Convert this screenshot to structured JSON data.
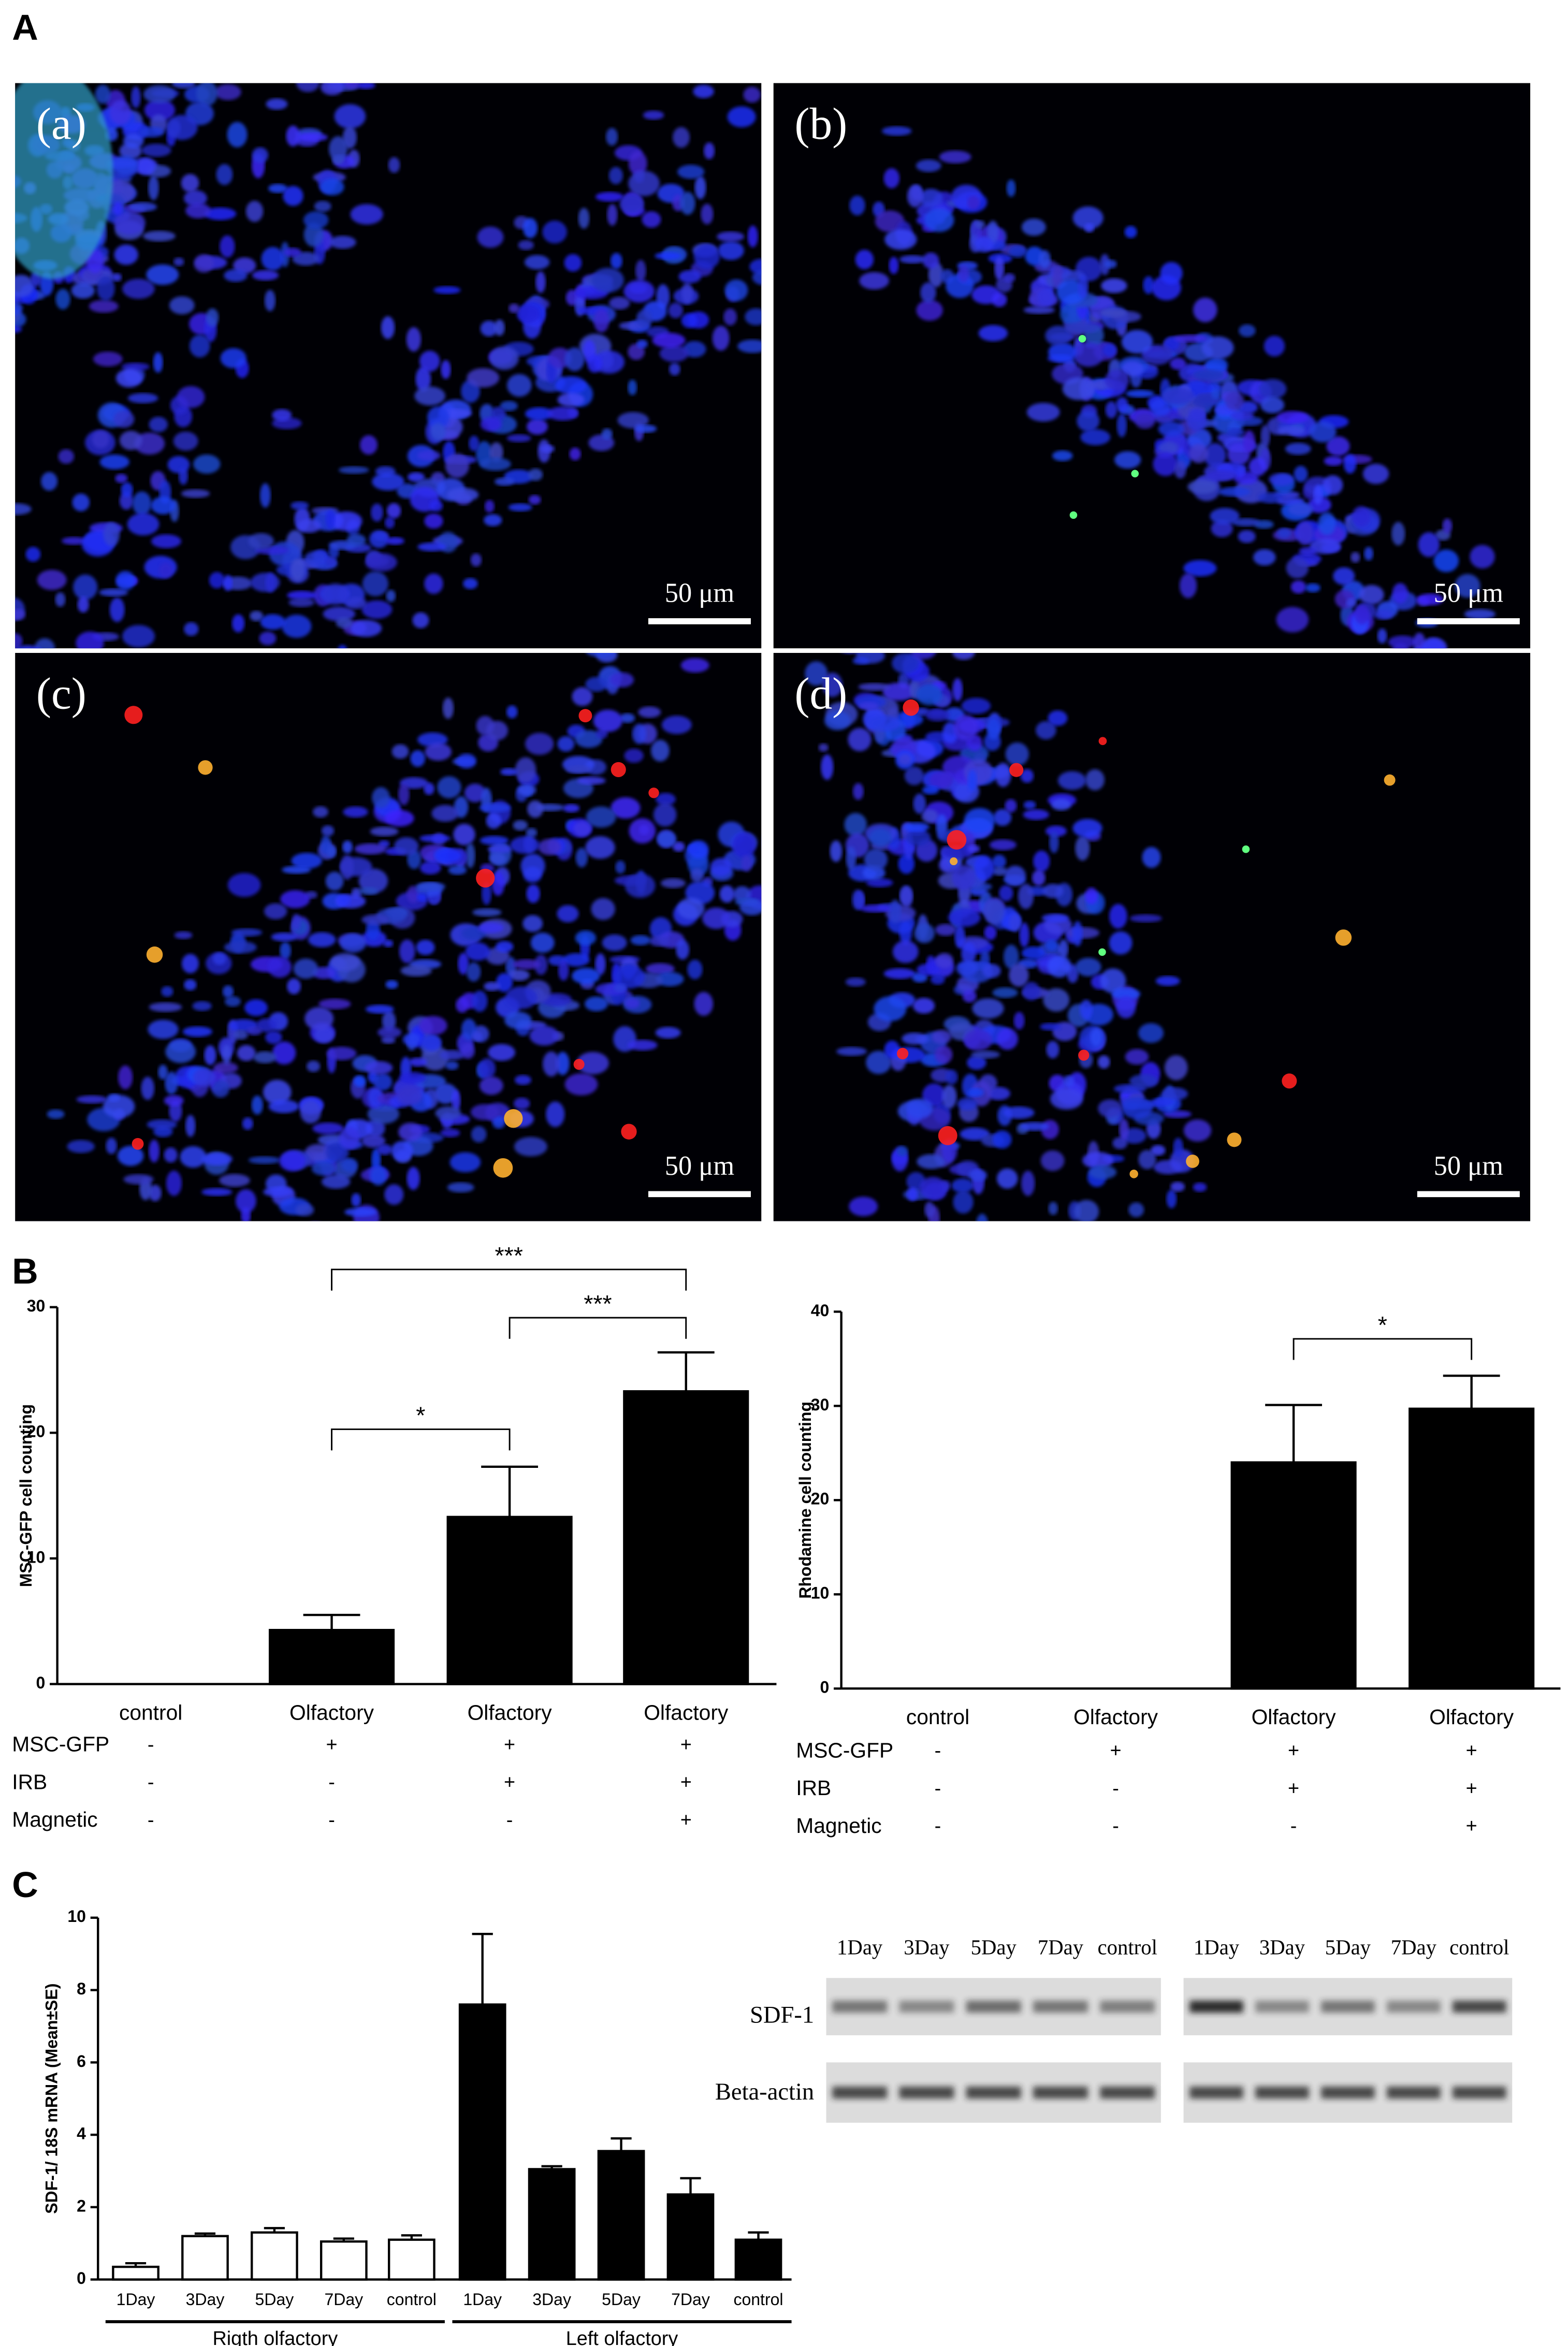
{
  "panel_labels": [
    "A",
    "B",
    "C"
  ],
  "micrographs": [
    {
      "label": "(a)",
      "scale_bar": "50 μm"
    },
    {
      "label": "(b)",
      "scale_bar": "50 μm"
    },
    {
      "label": "(c)",
      "scale_bar": "50 μm"
    },
    {
      "label": "(d)",
      "scale_bar": "50 μm"
    }
  ],
  "western_blot": {
    "rows": [
      "SDF-1",
      "Beta-actin"
    ],
    "blots": [
      {
        "lanes": [
          "1Day",
          "3Day",
          "5Day",
          "7Day",
          "control"
        ]
      },
      {
        "lanes": [
          "1Day",
          "3Day",
          "5Day",
          "7Day",
          "control"
        ]
      }
    ]
  },
  "chart_data": [
    {
      "type": "bar",
      "y_label": "MSC-GFP cell counting",
      "categories": [
        "control",
        "Olfactory",
        "Olfactory",
        "Olfactory"
      ],
      "values": [
        0,
        4.3,
        13.3,
        23.3
      ],
      "errors": [
        0,
        1.2,
        4.0,
        3.1
      ],
      "color": "#000000",
      "ylim": [
        0,
        30
      ],
      "yticks": [
        0,
        10,
        20,
        30
      ],
      "conditions": [
        {
          "label": "MSC-GFP",
          "signs": [
            "-",
            "+",
            "+",
            "+"
          ]
        },
        {
          "label": "IRB",
          "signs": [
            "-",
            "-",
            "+",
            "+"
          ]
        },
        {
          "label": "Magnetic",
          "signs": [
            "-",
            "-",
            "-",
            "+"
          ]
        }
      ],
      "significance": [
        {
          "from": 1,
          "to": 3,
          "label": "***"
        },
        {
          "from": 2,
          "to": 3,
          "label": "***"
        },
        {
          "from": 1,
          "to": 2,
          "label": "*"
        }
      ]
    },
    {
      "type": "bar",
      "y_label": "Rhodamine cell counting",
      "categories": [
        "control",
        "Olfactory",
        "Olfactory",
        "Olfactory"
      ],
      "values": [
        0,
        0,
        24,
        29.7
      ],
      "errors": [
        0,
        0,
        6.1,
        3.5
      ],
      "color": "#000000",
      "ylim": [
        0,
        40
      ],
      "yticks": [
        0,
        10,
        20,
        30,
        40
      ],
      "conditions": [
        {
          "label": "MSC-GFP",
          "signs": [
            "-",
            "+",
            "+",
            "+"
          ]
        },
        {
          "label": "IRB",
          "signs": [
            "-",
            "-",
            "+",
            "+"
          ]
        },
        {
          "label": "Magnetic",
          "signs": [
            "-",
            "-",
            "-",
            "+"
          ]
        }
      ],
      "significance": [
        {
          "from": 2,
          "to": 3,
          "label": "*"
        }
      ]
    },
    {
      "type": "grouped_bar",
      "y_label": "SDF-1/ 18S mRNA (Mean±SE)",
      "ylim": [
        0,
        10
      ],
      "yticks": [
        0,
        2,
        4,
        6,
        8,
        10
      ],
      "groups": [
        {
          "name": "Rigth olfactory",
          "color": "#ffffff",
          "categories": [
            "1Day",
            "3Day",
            "5Day",
            "7Day",
            "control"
          ],
          "values": [
            0.35,
            1.2,
            1.3,
            1.05,
            1.1
          ],
          "errors": [
            0.1,
            0.07,
            0.12,
            0.08,
            0.12
          ]
        },
        {
          "name": "Left olfactory",
          "color": "#000000",
          "categories": [
            "1Day",
            "3Day",
            "5Day",
            "7Day",
            "control"
          ],
          "values": [
            7.6,
            3.05,
            3.55,
            2.35,
            1.1
          ],
          "errors": [
            1.95,
            0.08,
            0.35,
            0.45,
            0.2
          ]
        }
      ]
    }
  ]
}
